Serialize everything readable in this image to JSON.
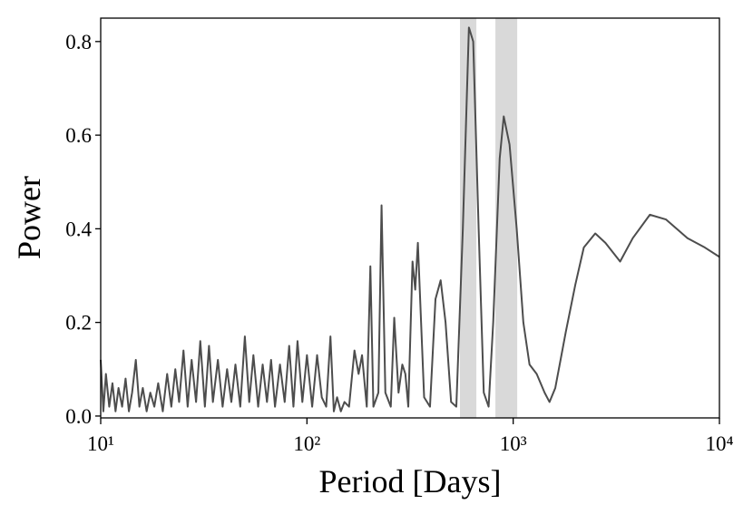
{
  "chart_data": {
    "type": "line",
    "xlabel": "Period [Days]",
    "ylabel": "Power",
    "xscale": "log",
    "xlim": [
      10,
      10000
    ],
    "ylim": [
      -0.004,
      0.85
    ],
    "xticks": [
      {
        "value": 10,
        "label": "10¹"
      },
      {
        "value": 100,
        "label": "10²"
      },
      {
        "value": 1000,
        "label": "10³"
      },
      {
        "value": 10000,
        "label": "10⁴"
      }
    ],
    "yticks": [
      {
        "value": 0,
        "label": "0.0"
      },
      0.2,
      0.4,
      0.6,
      0.8
    ],
    "highlight_spans": [
      [
        552,
        663
      ],
      [
        820,
        1046
      ]
    ],
    "span_color": "#d9d9d9",
    "series": [
      {
        "color": "#4d4d4d",
        "x": [
          10,
          10.3,
          10.6,
          11,
          11.4,
          11.8,
          12.2,
          12.7,
          13.2,
          13.7,
          14.2,
          14.8,
          15.4,
          16,
          16.7,
          17.4,
          18.2,
          19,
          20,
          21,
          22,
          23,
          24,
          25.2,
          26.4,
          27.6,
          29,
          30.4,
          32,
          33.5,
          35,
          37,
          39,
          41,
          43,
          45,
          47.5,
          50,
          52.5,
          55,
          58,
          61,
          64,
          67,
          70,
          74,
          78,
          82,
          86,
          90,
          95,
          100,
          106,
          112,
          118,
          124,
          130,
          135,
          140,
          146,
          152,
          160,
          170,
          178,
          185,
          195,
          203,
          210,
          222,
          230,
          240,
          255,
          265,
          278,
          290,
          300,
          310,
          325,
          335,
          345,
          370,
          395,
          420,
          445,
          470,
          500,
          530,
          570,
          610,
          640,
          680,
          720,
          760,
          800,
          860,
          900,
          960,
          1040,
          1120,
          1200,
          1300,
          1420,
          1500,
          1600,
          1800,
          2000,
          2200,
          2500,
          2800,
          3300,
          3800,
          4600,
          5500,
          7000,
          8500,
          10000
        ],
        "values": [
          0.12,
          0.01,
          0.09,
          0.02,
          0.07,
          0.01,
          0.06,
          0.02,
          0.08,
          0.01,
          0.05,
          0.12,
          0.02,
          0.06,
          0.01,
          0.05,
          0.02,
          0.07,
          0.01,
          0.09,
          0.02,
          0.1,
          0.03,
          0.14,
          0.02,
          0.12,
          0.03,
          0.16,
          0.02,
          0.15,
          0.03,
          0.12,
          0.02,
          0.1,
          0.03,
          0.11,
          0.02,
          0.17,
          0.03,
          0.13,
          0.02,
          0.11,
          0.03,
          0.12,
          0.02,
          0.11,
          0.03,
          0.15,
          0.02,
          0.16,
          0.03,
          0.13,
          0.02,
          0.13,
          0.04,
          0.02,
          0.17,
          0.01,
          0.04,
          0.01,
          0.03,
          0.02,
          0.14,
          0.09,
          0.13,
          0.02,
          0.32,
          0.02,
          0.05,
          0.45,
          0.05,
          0.02,
          0.21,
          0.05,
          0.11,
          0.09,
          0.02,
          0.33,
          0.27,
          0.37,
          0.04,
          0.02,
          0.25,
          0.29,
          0.2,
          0.03,
          0.02,
          0.4,
          0.83,
          0.8,
          0.4,
          0.05,
          0.02,
          0.2,
          0.55,
          0.64,
          0.58,
          0.4,
          0.2,
          0.11,
          0.09,
          0.05,
          0.03,
          0.06,
          0.18,
          0.28,
          0.36,
          0.39,
          0.37,
          0.33,
          0.38,
          0.43,
          0.42,
          0.38,
          0.36,
          0.34
        ]
      }
    ]
  }
}
